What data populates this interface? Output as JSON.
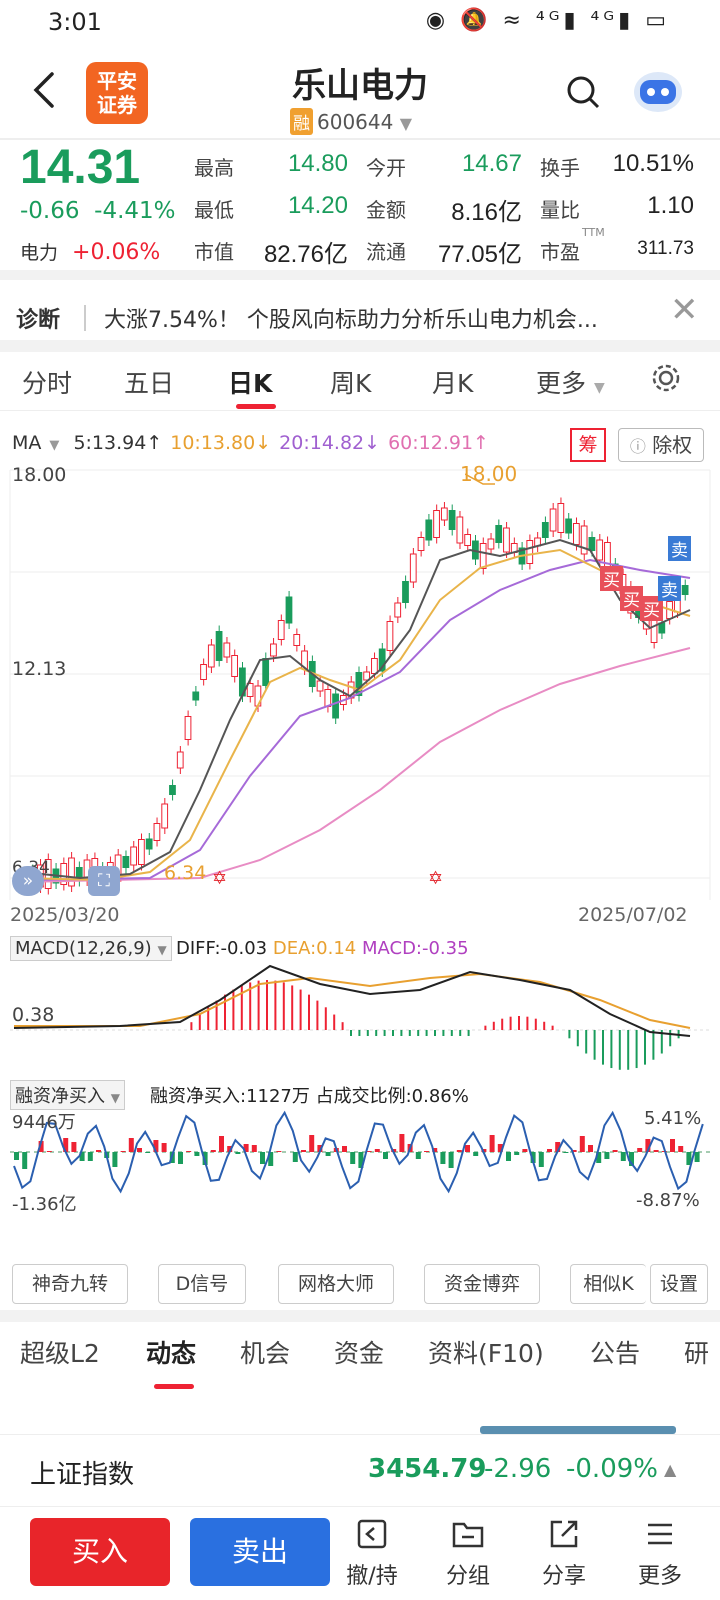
{
  "status": {
    "time": "3:01",
    "icons": "◉ 🔕 ≈ ⁴ᴳ▮ ⁴ᴳ▮ ▭"
  },
  "header": {
    "broker_logo": "平安\n证券",
    "title": "乐山电力",
    "rong_badge": "融",
    "code": "600644"
  },
  "quote": {
    "price": "14.31",
    "change": "-0.66",
    "change_pct": "-4.41%",
    "sector_name": "电力",
    "sector_change": "+0.06%",
    "fields": [
      {
        "label": "最高",
        "value": "14.80",
        "color": "#1a9c5c"
      },
      {
        "label": "今开",
        "value": "14.67",
        "color": "#1a9c5c"
      },
      {
        "label": "换手",
        "value": "10.51%",
        "color": "#222222"
      },
      {
        "label": "最低",
        "value": "14.20",
        "color": "#1a9c5c"
      },
      {
        "label": "金额",
        "value": "8.16亿",
        "color": "#222222"
      },
      {
        "label": "量比",
        "value": "1.10",
        "color": "#222222"
      },
      {
        "label": "市值",
        "value": "82.76亿",
        "color": "#222222"
      },
      {
        "label": "流通",
        "value": "77.05亿",
        "color": "#222222"
      },
      {
        "label": "市盈",
        "value": "311.73",
        "color": "#222222"
      }
    ],
    "pe_superscript": "TTM"
  },
  "diagnosis": {
    "label": "诊断",
    "text": "大涨7.54%！ 个股风向标助力分析乐山电力机会..."
  },
  "chart_tabs": [
    "分时",
    "五日",
    "日K",
    "周K",
    "月K",
    "更多"
  ],
  "ma": {
    "label": "MA",
    "items": [
      {
        "text": "5:13.94↑",
        "color": "#333333"
      },
      {
        "text": "10:13.80↓",
        "color": "#e8a030"
      },
      {
        "text": "20:14.82↓",
        "color": "#a060d0"
      },
      {
        "text": "60:12.91↑",
        "color": "#e070b0"
      }
    ],
    "chou": "筹",
    "chuquan": "除权"
  },
  "kline": {
    "y_top": "18.00",
    "y_mid": "12.13",
    "y_low": "6.34",
    "max_marker": "18.00",
    "min_marker": "6.34",
    "date_start": "2025/03/20",
    "date_end": "2025/07/02",
    "buy_tag": "买",
    "sell_tag": "卖"
  },
  "macd": {
    "selector": "MACD(12,26,9)",
    "diff": "DIFF:-0.03",
    "dea": "DEA:0.14",
    "macd": "MACD:-0.35",
    "level": "0.38"
  },
  "margin": {
    "selector": "融资净买入",
    "summary": "融资净买入:1127万  占成交比例:0.86%",
    "left_top": "9446万",
    "left_bottom": "-1.36亿",
    "right_top": "5.41%",
    "right_bottom": "-8.87%"
  },
  "tools": [
    "神奇九转",
    "D信号",
    "网格大师",
    "资金博弈",
    "相似K",
    "设置"
  ],
  "bottom_tabs": [
    "超级L2",
    "动态",
    "机会",
    "资金",
    "资料(F10)",
    "公告",
    "研"
  ],
  "index": {
    "name": "上证指数",
    "value": "3454.79",
    "change": "-2.96",
    "pct": "-0.09%"
  },
  "actions": {
    "buy": "买入",
    "sell": "卖出",
    "items": [
      "撤/持",
      "分组",
      "分享",
      "更多"
    ]
  },
  "chart_data": {
    "type": "candlestick",
    "title": "",
    "x_range": [
      "2025/03/20",
      "2025/07/02"
    ],
    "ylim": [
      6.34,
      18.0
    ],
    "y_ticks": [
      18.0,
      12.13,
      6.34
    ],
    "extremes": {
      "max": 18.0,
      "min": 6.34
    },
    "ma_latest": {
      "MA5": 13.94,
      "MA10": 13.8,
      "MA20": 14.82,
      "MA60": 12.91
    }
  }
}
